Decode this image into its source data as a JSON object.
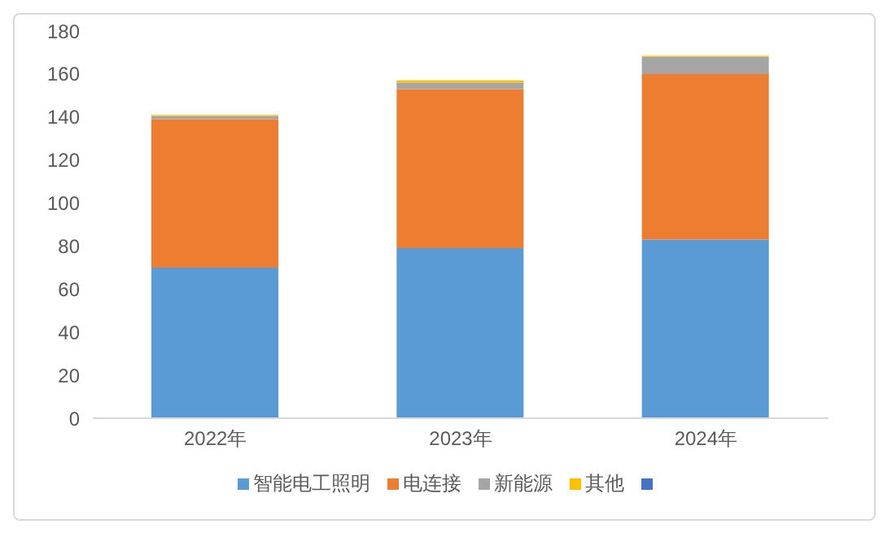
{
  "chart_data": {
    "type": "bar",
    "stacked": true,
    "categories": [
      "2022年",
      "2023年",
      "2024年"
    ],
    "series": [
      {
        "name": "智能电工照明",
        "color": "#5b9bd5",
        "values": [
          70,
          79,
          83
        ]
      },
      {
        "name": "电连接",
        "color": "#ed7d31",
        "values": [
          69,
          74,
          77
        ]
      },
      {
        "name": "新能源",
        "color": "#a5a5a5",
        "values": [
          1.5,
          3,
          8
        ]
      },
      {
        "name": "其他",
        "color": "#ffc000",
        "values": [
          0.5,
          1,
          0.5
        ]
      },
      {
        "color": "#4472c4",
        "values": [
          null,
          null,
          null
        ]
      }
    ],
    "ylim": [
      0,
      180
    ],
    "yticks": [
      0,
      20,
      40,
      60,
      80,
      100,
      120,
      140,
      160,
      180
    ],
    "grid": false,
    "legend": "bottom"
  }
}
